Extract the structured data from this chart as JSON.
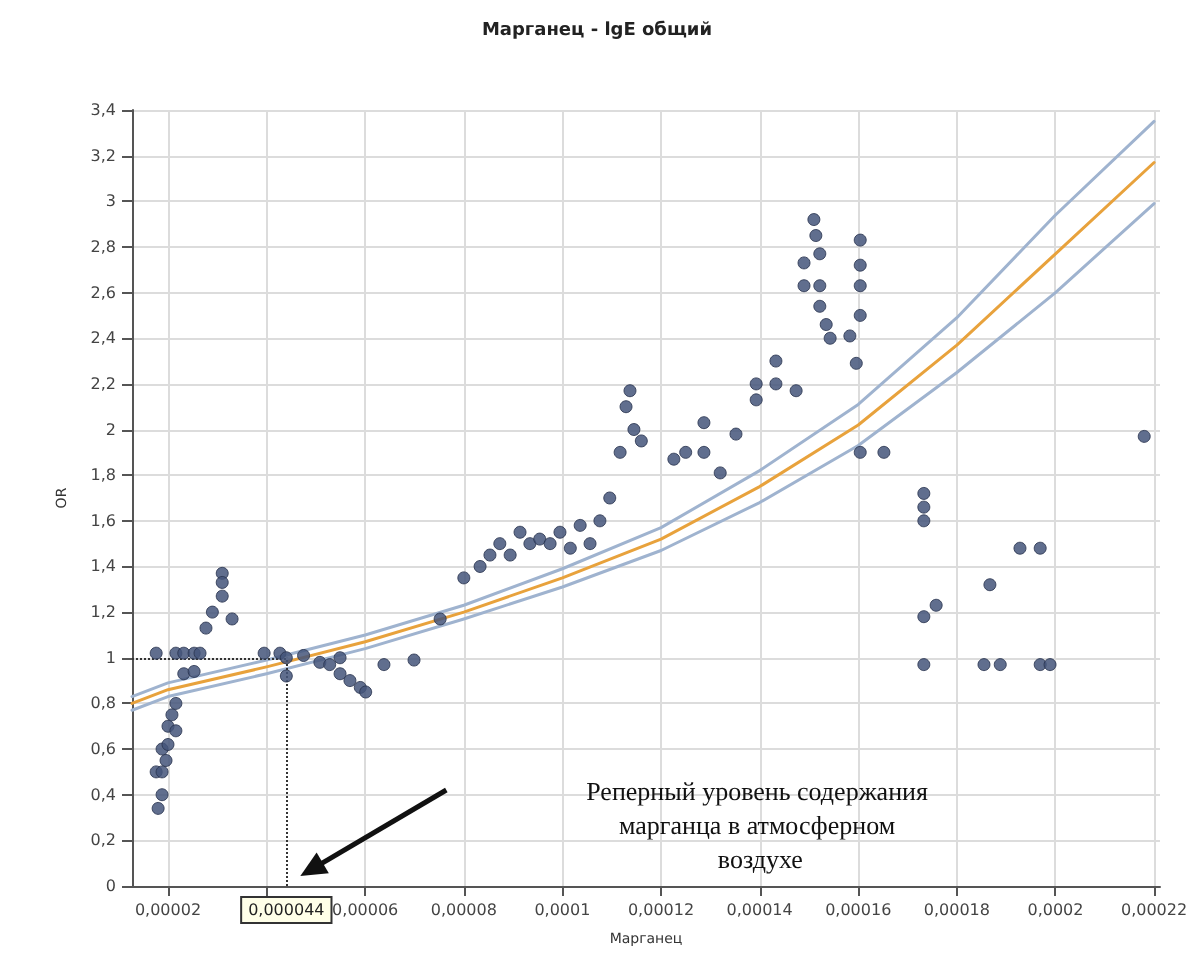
{
  "chart_data": {
    "type": "scatter",
    "title": "Марганец - lgE общий",
    "xlabel": "Марганец",
    "ylabel": "OR",
    "xlim": [
      1.27e-05,
      0.0002212
    ],
    "xticks": [
      {
        "value": 2e-05,
        "label": "0,00002"
      },
      {
        "value": 4e-05,
        "label": null
      },
      {
        "value": 6e-05,
        "label": "0,00006"
      },
      {
        "value": 8e-05,
        "label": "0,00008"
      },
      {
        "value": 0.0001,
        "label": "0,0001"
      },
      {
        "value": 0.00012,
        "label": "0,00012"
      },
      {
        "value": 0.00014,
        "label": "0,00014"
      },
      {
        "value": 0.00016,
        "label": "0,00016"
      },
      {
        "value": 0.00018,
        "label": "0,00018"
      },
      {
        "value": 0.0002,
        "label": "0,0002"
      },
      {
        "value": 0.00022,
        "label": "0,00022"
      }
    ],
    "ylim": [
      0,
      3.4
    ],
    "yticks": [
      {
        "value": 0,
        "label": "0"
      },
      {
        "value": 0.2,
        "label": "0,2"
      },
      {
        "value": 0.4,
        "label": "0,4"
      },
      {
        "value": 0.6,
        "label": "0,6"
      },
      {
        "value": 0.8,
        "label": "0,8"
      },
      {
        "value": 1,
        "label": "1"
      },
      {
        "value": 1.2,
        "label": "1,2"
      },
      {
        "value": 1.4,
        "label": "1,4"
      },
      {
        "value": 1.6,
        "label": "1,6"
      },
      {
        "value": 1.8,
        "label": "1,8"
      },
      {
        "value": 2,
        "label": "2"
      },
      {
        "value": 2.2,
        "label": "2,2"
      },
      {
        "value": 2.4,
        "label": "2,4"
      },
      {
        "value": 2.6,
        "label": "2,6"
      },
      {
        "value": 2.8,
        "label": "2,8"
      },
      {
        "value": 3,
        "label": "3"
      },
      {
        "value": 3.2,
        "label": "3,2"
      },
      {
        "value": 3.4,
        "label": "3,4"
      }
    ],
    "grid": true,
    "series": [
      {
        "marker": "circle",
        "color": "#44557a",
        "x": [
          1.76e-05,
          1.76e-05,
          1.88e-05,
          1.88e-05,
          1.8e-05,
          1.88e-05,
          2e-05,
          2e-05,
          2.08e-05,
          2.16e-05,
          2.16e-05,
          1.96e-05,
          2.16e-05,
          2.32e-05,
          2.53e-05,
          2.32e-05,
          2.53e-05,
          2.77e-05,
          2.9e-05,
          3.1e-05,
          3.1e-05,
          3.1e-05,
          3.3e-05,
          2.65e-05,
          3.95e-05,
          4.27e-05,
          4.4e-05,
          4.4e-05,
          4.75e-05,
          5.08e-05,
          5.28e-05,
          5.49e-05,
          5.49e-05,
          5.69e-05,
          5.9e-05,
          6.01e-05,
          6.38e-05,
          6.99e-05,
          7.52e-05,
          8e-05,
          8.33e-05,
          8.53e-05,
          8.73e-05,
          8.94e-05,
          9.14e-05,
          9.34e-05,
          9.54e-05,
          9.75e-05,
          9.95e-05,
          0.0001016,
          0.0001036,
          0.0001056,
          0.0001076,
          0.0001096,
          0.0001117,
          0.0001129,
          0.0001137,
          0.0001145,
          0.000116,
          0.0001226,
          0.000125,
          0.0001287,
          0.0001287,
          0.000132,
          0.0001352,
          0.0001393,
          0.0001393,
          0.0001433,
          0.0001433,
          0.0001474,
          0.000149,
          0.000149,
          0.000151,
          0.0001514,
          0.0001522,
          0.0001522,
          0.0001522,
          0.0001535,
          0.0001543,
          0.0001604,
          0.0001604,
          0.0001604,
          0.0001604,
          0.0001583,
          0.0001596,
          0.0001604,
          0.0001652,
          0.0001733,
          0.0001733,
          0.0001733,
          0.0001733,
          0.0001758,
          0.0001733,
          0.0001867,
          0.0001855,
          0.0001888,
          0.0001928,
          0.0001969,
          0.0001969,
          0.0001989,
          0.000218
        ],
        "values": [
          1.02,
          0.5,
          0.5,
          0.4,
          0.34,
          0.6,
          0.62,
          0.7,
          0.75,
          0.8,
          0.68,
          0.55,
          1.02,
          1.02,
          1.02,
          0.93,
          0.94,
          1.13,
          1.2,
          1.37,
          1.33,
          1.27,
          1.17,
          1.02,
          1.02,
          1.02,
          0.92,
          1.0,
          1.01,
          0.98,
          0.97,
          1.0,
          0.93,
          0.9,
          0.87,
          0.85,
          0.97,
          0.99,
          1.17,
          1.35,
          1.4,
          1.45,
          1.5,
          1.45,
          1.55,
          1.5,
          1.52,
          1.5,
          1.55,
          1.48,
          1.58,
          1.5,
          1.6,
          1.7,
          1.9,
          2.1,
          2.17,
          2.0,
          1.95,
          1.87,
          1.9,
          2.03,
          1.9,
          1.81,
          1.98,
          2.13,
          2.2,
          2.2,
          2.3,
          2.17,
          2.73,
          2.63,
          2.92,
          2.85,
          2.77,
          2.63,
          2.54,
          2.46,
          2.4,
          2.83,
          2.72,
          2.63,
          2.5,
          2.41,
          2.29,
          1.9,
          1.9,
          1.72,
          1.66,
          1.6,
          1.18,
          1.23,
          0.97,
          1.32,
          0.97,
          0.97,
          1.48,
          1.48,
          0.97,
          0.97,
          1.97
        ]
      },
      {
        "type": "line",
        "marker": "none",
        "line_style": "solid",
        "color": "#e8a23c",
        "x": [
          1.27e-05,
          2e-05,
          4e-05,
          6e-05,
          8e-05,
          0.0001,
          0.00012,
          0.00014,
          0.00016,
          0.00018,
          0.0002,
          0.00022
        ],
        "values": [
          0.8,
          0.86,
          0.96,
          1.07,
          1.2,
          1.35,
          1.52,
          1.75,
          2.02,
          2.37,
          2.77,
          3.17
        ]
      },
      {
        "type": "line",
        "marker": "none",
        "line_style": "solid",
        "color": "#9fb3cf",
        "x": [
          1.27e-05,
          2e-05,
          4e-05,
          6e-05,
          8e-05,
          0.0001,
          0.00012,
          0.00014,
          0.00016,
          0.00018,
          0.0002,
          0.00022
        ],
        "values": [
          0.77,
          0.83,
          0.93,
          1.04,
          1.17,
          1.31,
          1.47,
          1.68,
          1.93,
          2.25,
          2.6,
          2.99
        ]
      },
      {
        "type": "line",
        "marker": "none",
        "line_style": "solid",
        "color": "#9fb3cf",
        "x": [
          1.27e-05,
          2e-05,
          4e-05,
          6e-05,
          8e-05,
          0.0001,
          0.00012,
          0.00014,
          0.00016,
          0.00018,
          0.0002,
          0.00022
        ],
        "values": [
          0.83,
          0.89,
          0.99,
          1.1,
          1.23,
          1.39,
          1.57,
          1.82,
          2.11,
          2.49,
          2.94,
          3.35
        ]
      }
    ],
    "ref_lines": [
      {
        "axis": "x",
        "value": 4.4e-05,
        "label": "0,000044",
        "line_style": "dotted"
      },
      {
        "axis": "y",
        "value": 1,
        "line_style": "dotted"
      }
    ],
    "annotations": [
      "Реперный уровень содержания марганца в атмосферном воздухе"
    ]
  }
}
